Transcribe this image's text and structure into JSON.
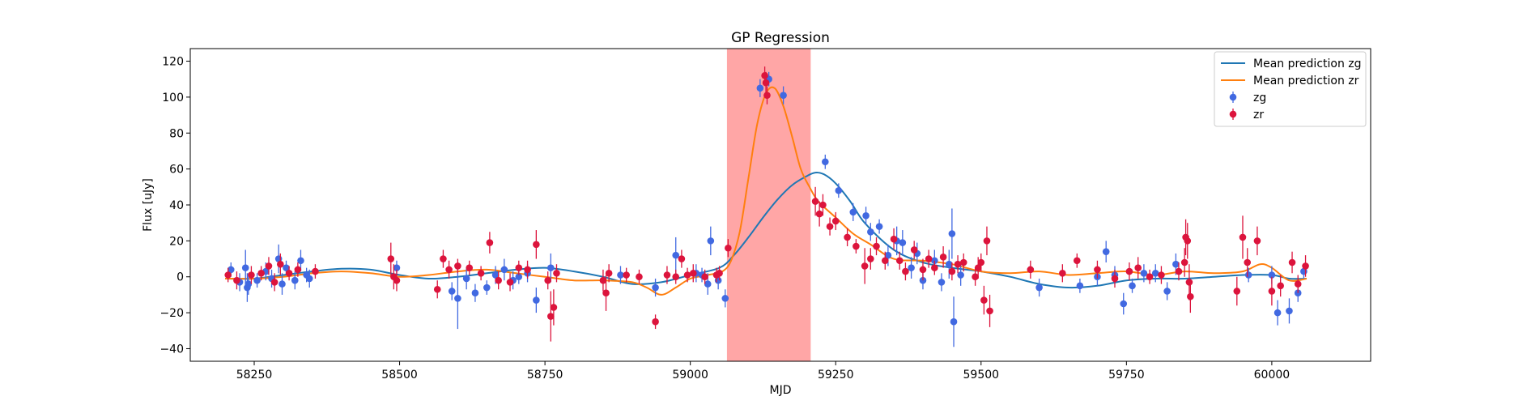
{
  "chart_data": {
    "type": "scatter",
    "title": "GP Regression",
    "xlabel": "MJD",
    "ylabel": "Flux [uJy]",
    "xlim": [
      58140,
      60170
    ],
    "ylim": [
      -47,
      127
    ],
    "xticks": [
      58250,
      58500,
      58750,
      59000,
      59250,
      59500,
      59750,
      60000
    ],
    "yticks": [
      -40,
      -20,
      0,
      20,
      40,
      60,
      80,
      100,
      120
    ],
    "grid": false,
    "legend_position": "top-right",
    "highlight_span": {
      "x": [
        59063,
        59207
      ],
      "color": "#ff0000",
      "alpha": 0.35
    },
    "colors": {
      "zg_line": "#1f77b4",
      "zr_line": "#ff7f0e",
      "zg_points": "#4169e1",
      "zr_points": "#dc143c"
    },
    "legend": [
      {
        "label": "Mean prediction zg",
        "kind": "line",
        "color": "#1f77b4"
      },
      {
        "label": "Mean prediction zr",
        "kind": "line",
        "color": "#ff7f0e"
      },
      {
        "label": "zg",
        "kind": "errorpoint",
        "color": "#4169e1"
      },
      {
        "label": "zr",
        "kind": "errorpoint",
        "color": "#dc143c"
      }
    ],
    "lines": [
      {
        "name": "Mean prediction zg",
        "color": "#1f77b4",
        "x": [
          58200,
          58250,
          58300,
          58350,
          58400,
          58450,
          58500,
          58550,
          58600,
          58650,
          58700,
          58750,
          58800,
          58850,
          58900,
          58950,
          59000,
          59050,
          59075,
          59100,
          59125,
          59150,
          59175,
          59200,
          59215,
          59230,
          59250,
          59275,
          59300,
          59350,
          59400,
          59450,
          59500,
          59550,
          59600,
          59650,
          59700,
          59750,
          59800,
          59850,
          59900,
          59950,
          60000,
          60030,
          60060
        ],
        "y": [
          -1,
          -1,
          1,
          3,
          4.5,
          4,
          1,
          -1,
          0,
          2,
          4,
          5,
          3,
          0,
          -4,
          -3,
          1,
          5,
          12,
          22,
          33,
          43,
          51,
          56,
          58,
          57,
          52,
          42,
          30,
          15,
          8,
          5,
          3,
          0,
          -4,
          -6,
          -5,
          -2,
          -1,
          -1,
          0,
          1,
          1,
          -1,
          -1
        ]
      },
      {
        "name": "Mean prediction zr",
        "color": "#ff7f0e",
        "x": [
          58200,
          58250,
          58300,
          58350,
          58400,
          58450,
          58500,
          58550,
          58600,
          58650,
          58700,
          58750,
          58800,
          58850,
          58900,
          58925,
          58950,
          58975,
          59000,
          59030,
          59055,
          59070,
          59085,
          59100,
          59115,
          59130,
          59145,
          59160,
          59175,
          59190,
          59205,
          59220,
          59250,
          59280,
          59310,
          59350,
          59400,
          59450,
          59500,
          59550,
          59600,
          59650,
          59700,
          59750,
          59800,
          59850,
          59900,
          59950,
          59980,
          60000,
          60030,
          60060
        ],
        "y": [
          -1,
          -1,
          0,
          2,
          3,
          2,
          0,
          1,
          3,
          4,
          2,
          0,
          -2,
          -2,
          -3,
          -6,
          -10,
          -6,
          -1,
          1,
          3,
          9,
          25,
          55,
          85,
          102,
          105,
          95,
          78,
          60,
          50,
          42,
          33,
          24,
          18,
          10,
          9,
          7,
          3,
          2,
          3,
          1,
          2,
          3,
          1,
          3,
          2,
          3,
          7,
          5,
          -2,
          -1
        ]
      }
    ],
    "series": [
      {
        "name": "zg",
        "color": "#4169e1",
        "points": [
          [
            58210,
            4,
            4
          ],
          [
            58225,
            -3,
            5
          ],
          [
            58235,
            5,
            10
          ],
          [
            58238,
            -6,
            8
          ],
          [
            58240,
            -4,
            6
          ],
          [
            58255,
            -2,
            4
          ],
          [
            58270,
            3,
            5
          ],
          [
            58280,
            -1,
            5
          ],
          [
            58292,
            10,
            8
          ],
          [
            58298,
            -4,
            6
          ],
          [
            58305,
            5,
            4
          ],
          [
            58320,
            -2,
            5
          ],
          [
            58330,
            9,
            6
          ],
          [
            58340,
            1,
            4
          ],
          [
            58345,
            -1,
            5
          ],
          [
            58495,
            5,
            4
          ],
          [
            58590,
            -8,
            5
          ],
          [
            58600,
            -12,
            17
          ],
          [
            58615,
            -1,
            6
          ],
          [
            58630,
            -9,
            5
          ],
          [
            58650,
            -6,
            4
          ],
          [
            58665,
            1,
            5
          ],
          [
            58680,
            4,
            6
          ],
          [
            58695,
            -2,
            5
          ],
          [
            58705,
            0,
            4
          ],
          [
            58720,
            2,
            5
          ],
          [
            58735,
            -13,
            7
          ],
          [
            58760,
            5,
            8
          ],
          [
            58880,
            1,
            5
          ],
          [
            58940,
            -6,
            5
          ],
          [
            58975,
            12,
            10
          ],
          [
            59010,
            2,
            5
          ],
          [
            59020,
            1,
            4
          ],
          [
            59030,
            -4,
            6
          ],
          [
            59035,
            20,
            8
          ],
          [
            59048,
            -2,
            5
          ],
          [
            59060,
            -12,
            5
          ],
          [
            59120,
            105,
            5
          ],
          [
            59135,
            110,
            4
          ],
          [
            59160,
            101,
            5
          ],
          [
            59232,
            64,
            4
          ],
          [
            59255,
            48,
            4
          ],
          [
            59280,
            36,
            5
          ],
          [
            59302,
            34,
            5
          ],
          [
            59310,
            25,
            5
          ],
          [
            59325,
            28,
            4
          ],
          [
            59340,
            12,
            6
          ],
          [
            59355,
            20,
            8
          ],
          [
            59365,
            19,
            7
          ],
          [
            59380,
            5,
            6
          ],
          [
            59390,
            13,
            6
          ],
          [
            59400,
            -2,
            5
          ],
          [
            59420,
            9,
            6
          ],
          [
            59432,
            -3,
            5
          ],
          [
            59445,
            7,
            8
          ],
          [
            59450,
            24,
            14
          ],
          [
            59453,
            -25,
            14
          ],
          [
            59465,
            1,
            6
          ],
          [
            59600,
            -6,
            5
          ],
          [
            59670,
            -5,
            4
          ],
          [
            59700,
            0,
            5
          ],
          [
            59715,
            14,
            6
          ],
          [
            59730,
            1,
            5
          ],
          [
            59745,
            -15,
            6
          ],
          [
            59760,
            -5,
            4
          ],
          [
            59780,
            2,
            5
          ],
          [
            59800,
            2,
            5
          ],
          [
            59820,
            -8,
            5
          ],
          [
            59835,
            7,
            6
          ],
          [
            59960,
            1,
            4
          ],
          [
            60000,
            1,
            5
          ],
          [
            60010,
            -20,
            7
          ],
          [
            60030,
            -19,
            7
          ],
          [
            60045,
            -9,
            5
          ],
          [
            60055,
            3,
            4
          ]
        ]
      },
      {
        "name": "zr",
        "color": "#dc143c",
        "points": [
          [
            58205,
            1,
            4
          ],
          [
            58220,
            -2,
            5
          ],
          [
            58245,
            1,
            5
          ],
          [
            58262,
            2,
            4
          ],
          [
            58275,
            6,
            5
          ],
          [
            58285,
            -3,
            5
          ],
          [
            58295,
            7,
            6
          ],
          [
            58310,
            2,
            4
          ],
          [
            58325,
            4,
            4
          ],
          [
            58355,
            3,
            4
          ],
          [
            58485,
            10,
            9
          ],
          [
            58490,
            0,
            7
          ],
          [
            58495,
            -2,
            6
          ],
          [
            58565,
            -7,
            5
          ],
          [
            58575,
            10,
            5
          ],
          [
            58585,
            4,
            5
          ],
          [
            58600,
            6,
            4
          ],
          [
            58620,
            5,
            4
          ],
          [
            58640,
            2,
            4
          ],
          [
            58655,
            19,
            6
          ],
          [
            58670,
            -2,
            5
          ],
          [
            58690,
            -3,
            5
          ],
          [
            58705,
            5,
            4
          ],
          [
            58720,
            4,
            5
          ],
          [
            58735,
            18,
            8
          ],
          [
            58755,
            -2,
            5
          ],
          [
            58760,
            -22,
            14
          ],
          [
            58765,
            -17,
            10
          ],
          [
            58770,
            2,
            5
          ],
          [
            58850,
            -2,
            6
          ],
          [
            58855,
            -9,
            10
          ],
          [
            58860,
            2,
            5
          ],
          [
            58890,
            1,
            4
          ],
          [
            58912,
            0,
            4
          ],
          [
            58940,
            -25,
            4
          ],
          [
            58960,
            1,
            5
          ],
          [
            58975,
            0,
            4
          ],
          [
            58985,
            10,
            5
          ],
          [
            58995,
            1,
            4
          ],
          [
            59005,
            2,
            5
          ],
          [
            59025,
            0,
            4
          ],
          [
            59045,
            1,
            4
          ],
          [
            59050,
            2,
            4
          ],
          [
            59065,
            16,
            5
          ],
          [
            59128,
            112,
            5
          ],
          [
            59130,
            108,
            6
          ],
          [
            59132,
            101,
            5
          ],
          [
            59215,
            42,
            8
          ],
          [
            59222,
            35,
            7
          ],
          [
            59228,
            40,
            6
          ],
          [
            59240,
            28,
            5
          ],
          [
            59250,
            31,
            5
          ],
          [
            59270,
            22,
            5
          ],
          [
            59285,
            17,
            4
          ],
          [
            59300,
            6,
            10
          ],
          [
            59310,
            10,
            6
          ],
          [
            59320,
            17,
            5
          ],
          [
            59335,
            9,
            5
          ],
          [
            59350,
            21,
            6
          ],
          [
            59360,
            9,
            5
          ],
          [
            59370,
            3,
            5
          ],
          [
            59385,
            15,
            5
          ],
          [
            59400,
            4,
            6
          ],
          [
            59410,
            10,
            5
          ],
          [
            59420,
            5,
            4
          ],
          [
            59435,
            11,
            6
          ],
          [
            59450,
            3,
            5
          ],
          [
            59460,
            7,
            5
          ],
          [
            59470,
            8,
            5
          ],
          [
            59490,
            0,
            5
          ],
          [
            59495,
            5,
            6
          ],
          [
            59500,
            8,
            5
          ],
          [
            59505,
            -13,
            8
          ],
          [
            59510,
            20,
            8
          ],
          [
            59515,
            -19,
            9
          ],
          [
            59585,
            4,
            5
          ],
          [
            59640,
            2,
            5
          ],
          [
            59665,
            9,
            4
          ],
          [
            59700,
            4,
            5
          ],
          [
            59730,
            -1,
            5
          ],
          [
            59755,
            3,
            5
          ],
          [
            59770,
            5,
            6
          ],
          [
            59790,
            0,
            4
          ],
          [
            59810,
            1,
            5
          ],
          [
            59840,
            3,
            5
          ],
          [
            59850,
            8,
            8
          ],
          [
            59852,
            22,
            10
          ],
          [
            59855,
            20,
            10
          ],
          [
            59858,
            -3,
            10
          ],
          [
            59860,
            -11,
            9
          ],
          [
            59940,
            -8,
            8
          ],
          [
            59950,
            22,
            12
          ],
          [
            59958,
            8,
            8
          ],
          [
            59975,
            20,
            8
          ],
          [
            60000,
            -8,
            8
          ],
          [
            60015,
            -5,
            6
          ],
          [
            60035,
            8,
            6
          ],
          [
            60045,
            -4,
            5
          ],
          [
            60058,
            6,
            6
          ]
        ]
      }
    ]
  }
}
